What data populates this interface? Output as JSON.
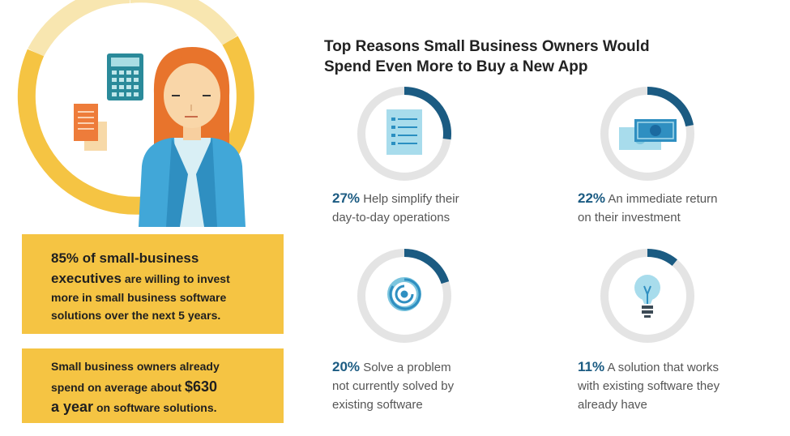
{
  "title": {
    "line1": "Top Reasons Small Business Owners Would",
    "line2": "Spend Even More to Buy a New App"
  },
  "box1": {
    "line1": "85% of small-business",
    "line2_big": "executives",
    "line2_rest": " are willing to invest",
    "line3": "more in small business software",
    "line4": "solutions over the next 5 years."
  },
  "box2": {
    "line1": "Small business owners already",
    "line2_pre": "spend on average about ",
    "line2_big": "$630",
    "line3_big": "a year",
    "line3_rest": " on software solutions."
  },
  "chart_data": {
    "type": "pie",
    "title": "Top Reasons Small Business Owners Would Spend Even More to Buy a New App",
    "categories": [
      "Help simplify their day-to-day operations",
      "An immediate return on their investment",
      "Solve a problem not currently solved by existing software",
      "A solution that works with existing software they already have"
    ],
    "values": [
      27,
      22,
      20,
      11
    ],
    "unit": "%",
    "items": [
      {
        "pct": "27%",
        "lines": [
          "Help simplify their",
          "day-to-day operations"
        ],
        "value": 27,
        "icon": "checklist-icon"
      },
      {
        "pct": "22%",
        "lines": [
          "An immediate return",
          "on their investment"
        ],
        "value": 22,
        "icon": "money-bills-icon"
      },
      {
        "pct": "20%",
        "lines": [
          "Solve a problem",
          "not currently solved by",
          "existing software"
        ],
        "value": 20,
        "icon": "maze-icon"
      },
      {
        "pct": "11%",
        "lines": [
          "A solution that works",
          "with existing software they",
          "already have"
        ],
        "value": 11,
        "icon": "lightbulb-icon"
      }
    ]
  },
  "colors": {
    "accent_blue": "#1b5b82",
    "ring_gray": "#e4e4e4",
    "yellow": "#f5c443",
    "pale_yellow": "#f8e6b0"
  }
}
